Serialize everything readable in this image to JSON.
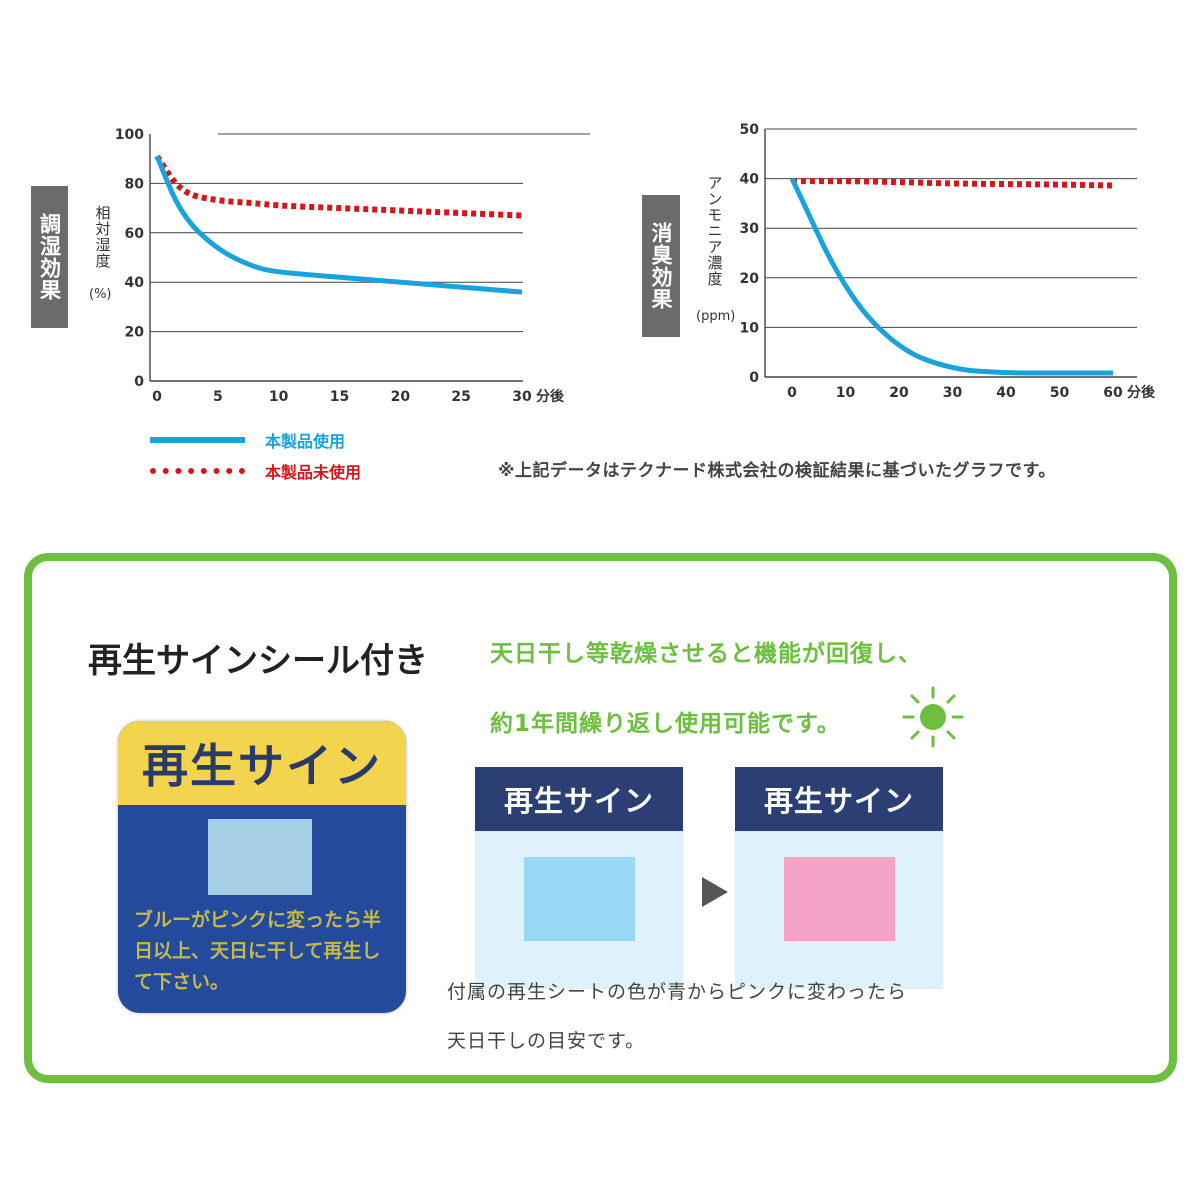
{
  "chart_data": [
    {
      "type": "line",
      "side_tag": "調湿効果",
      "ylabel": "相対湿度",
      "yunit": "(%)",
      "x": [
        0,
        2,
        5,
        8,
        10,
        15,
        20,
        25,
        30
      ],
      "x_ticks": [
        "0",
        "5",
        "10",
        "15",
        "20",
        "25",
        "30"
      ],
      "x_suffix": "分後",
      "y_ticks": [
        "0",
        "20",
        "40",
        "60",
        "80",
        "100"
      ],
      "ylim": [
        0,
        100
      ],
      "series": [
        {
          "name": "本製品使用",
          "values": [
            91,
            67,
            53,
            46,
            44,
            42,
            40,
            38,
            36
          ]
        },
        {
          "name": "本製品未使用",
          "values": [
            91,
            76,
            73,
            72,
            71,
            70,
            69,
            68,
            67
          ]
        }
      ]
    },
    {
      "type": "line",
      "side_tag": "消臭効果",
      "ylabel": "アンモニア濃度",
      "yunit": "(ppm)",
      "x": [
        0,
        10,
        20,
        30,
        40,
        50,
        60
      ],
      "x_ticks": [
        "0",
        "10",
        "20",
        "30",
        "40",
        "50",
        "60"
      ],
      "x_suffix": "分後",
      "y_ticks": [
        "0",
        "10",
        "20",
        "30",
        "40",
        "50"
      ],
      "ylim": [
        0,
        50
      ],
      "series": [
        {
          "name": "本製品使用",
          "values": [
            40,
            17,
            5.5,
            1.5,
            0.8,
            0.8,
            0.8
          ]
        },
        {
          "name": "本製品未使用",
          "values": [
            39.5,
            39.5,
            39.3,
            39,
            38.9,
            38.8,
            38.6
          ]
        }
      ]
    }
  ],
  "legend": {
    "items": [
      {
        "label": "本製品使用",
        "color": "#19a3dc",
        "style": "solid"
      },
      {
        "label": "本製品未使用",
        "color": "#d7161c",
        "style": "dotted"
      }
    ]
  },
  "note": "※上記データはテクナード株式会社の検証結果に基づいたグラフです。",
  "panel": {
    "title": "再生サインシール付き",
    "line1": "天日干し等乾燥させると機能が回復し、",
    "line2": "約1年間繰り返し使用可能です。",
    "sticker": {
      "head": "再生サイン",
      "text": "ブルーがピンクに変ったら半日以上、天日に干して再生して下さい。"
    },
    "card_before": {
      "head": "再生サイン",
      "swatch_color": "#98d9f5"
    },
    "card_after": {
      "head": "再生サイン",
      "swatch_color": "#f4a3c7"
    },
    "desc1": "付属の再生シートの色が青からピンクに変わったら",
    "desc2": "天日干しの目安です。"
  },
  "colors": {
    "accent_green": "#6cbf3f",
    "navy": "#2b3f74",
    "used_line": "#19a3dc",
    "unused_line": "#d7161c"
  }
}
